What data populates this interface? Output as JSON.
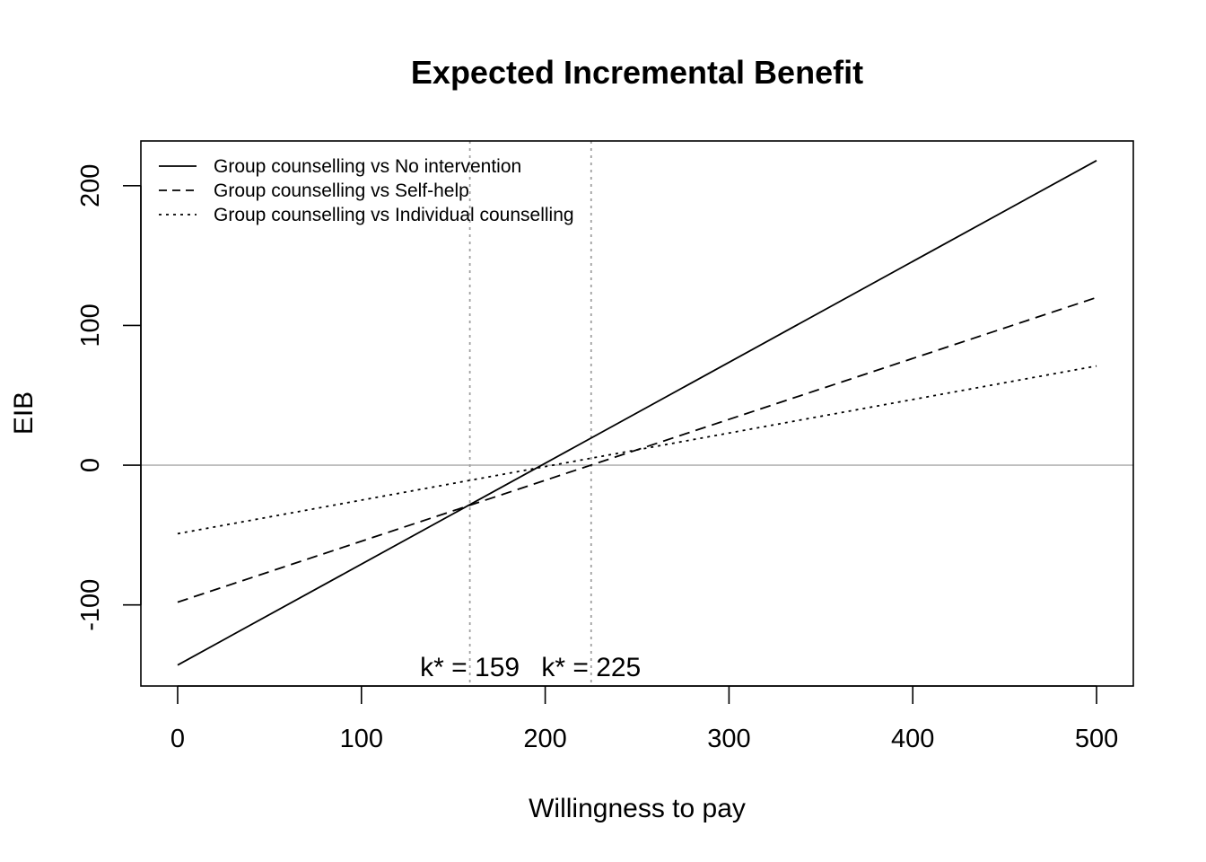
{
  "chart_data": {
    "type": "line",
    "title": "Expected Incremental Benefit",
    "xlabel": "Willingness to pay",
    "ylabel": "EIB",
    "xlim": [
      -20,
      520
    ],
    "ylim": [
      -158,
      232
    ],
    "xticks": [
      0,
      100,
      200,
      300,
      400,
      500
    ],
    "yticks": [
      -100,
      0,
      100,
      200
    ],
    "xtick_labels": [
      "0",
      "100",
      "200",
      "300",
      "400",
      "500"
    ],
    "ytick_labels": [
      "-100",
      "0",
      "100",
      "200"
    ],
    "grid": false,
    "legend_position": "top-left",
    "zero_line_color": "#bebebe",
    "breakeven_line_color": "#a0a0a0",
    "series": [
      {
        "name": "Group counselling vs No intervention",
        "dash": "solid",
        "x": [
          0,
          500
        ],
        "y": [
          -143,
          218
        ]
      },
      {
        "name": "Group counselling vs Self-help",
        "dash": "dashed",
        "x": [
          0,
          500
        ],
        "y": [
          -98,
          120
        ]
      },
      {
        "name": "Group counselling vs Individual counselling",
        "dash": "dotted",
        "x": [
          0,
          500
        ],
        "y": [
          -49,
          71
        ]
      }
    ],
    "breakevens": [
      {
        "k": 159,
        "label": "k* = 159"
      },
      {
        "k": 225,
        "label": "k* = 225"
      }
    ]
  }
}
